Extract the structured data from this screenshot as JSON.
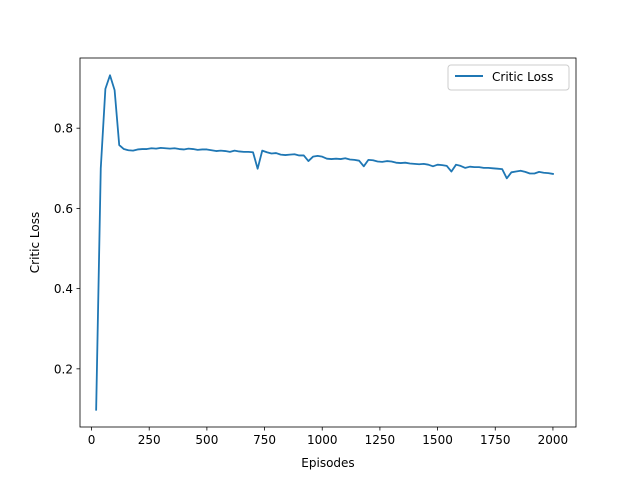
{
  "chart_data": {
    "type": "line",
    "xlabel": "Episodes",
    "ylabel": "Critic Loss",
    "xlim": [
      -50,
      2100
    ],
    "ylim": [
      0.055,
      0.975
    ],
    "xticks": [
      0,
      250,
      500,
      750,
      1000,
      1250,
      1500,
      1750,
      2000
    ],
    "yticks": [
      0.2,
      0.4,
      0.6,
      0.8
    ],
    "ytick_labels": [
      "0.2",
      "0.4",
      "0.6",
      "0.8"
    ],
    "legend": {
      "position": "top-right",
      "entries": [
        "Critic Loss"
      ]
    },
    "grid": false,
    "series": [
      {
        "name": "Critic Loss",
        "color": "#1f77b4",
        "x": [
          20,
          40,
          60,
          80,
          100,
          120,
          140,
          160,
          180,
          200,
          220,
          240,
          260,
          280,
          300,
          320,
          340,
          360,
          380,
          400,
          420,
          440,
          460,
          480,
          500,
          520,
          540,
          560,
          580,
          600,
          620,
          640,
          660,
          680,
          700,
          720,
          740,
          760,
          780,
          800,
          820,
          840,
          860,
          880,
          900,
          920,
          940,
          960,
          980,
          1000,
          1020,
          1040,
          1060,
          1080,
          1100,
          1120,
          1140,
          1160,
          1180,
          1200,
          1220,
          1240,
          1260,
          1280,
          1300,
          1320,
          1340,
          1360,
          1380,
          1400,
          1420,
          1440,
          1460,
          1480,
          1500,
          1520,
          1540,
          1560,
          1580,
          1600,
          1620,
          1640,
          1660,
          1680,
          1700,
          1720,
          1740,
          1760,
          1780,
          1800,
          1820,
          1840,
          1860,
          1880,
          1900,
          1920,
          1940,
          1960,
          1980,
          2000
        ],
        "y": [
          0.098,
          0.7,
          0.898,
          0.932,
          0.895,
          0.758,
          0.748,
          0.745,
          0.744,
          0.747,
          0.748,
          0.748,
          0.75,
          0.749,
          0.751,
          0.75,
          0.749,
          0.75,
          0.748,
          0.747,
          0.749,
          0.748,
          0.746,
          0.747,
          0.747,
          0.745,
          0.743,
          0.744,
          0.743,
          0.741,
          0.744,
          0.742,
          0.741,
          0.741,
          0.74,
          0.699,
          0.744,
          0.74,
          0.737,
          0.738,
          0.734,
          0.733,
          0.734,
          0.735,
          0.732,
          0.732,
          0.718,
          0.729,
          0.731,
          0.729,
          0.724,
          0.723,
          0.724,
          0.723,
          0.725,
          0.722,
          0.721,
          0.719,
          0.705,
          0.721,
          0.72,
          0.717,
          0.716,
          0.718,
          0.717,
          0.714,
          0.713,
          0.714,
          0.712,
          0.711,
          0.71,
          0.711,
          0.709,
          0.705,
          0.709,
          0.708,
          0.706,
          0.692,
          0.709,
          0.706,
          0.701,
          0.704,
          0.703,
          0.703,
          0.701,
          0.701,
          0.7,
          0.699,
          0.698,
          0.675,
          0.69,
          0.692,
          0.694,
          0.691,
          0.687,
          0.687,
          0.691,
          0.689,
          0.688,
          0.686
        ]
      }
    ]
  }
}
